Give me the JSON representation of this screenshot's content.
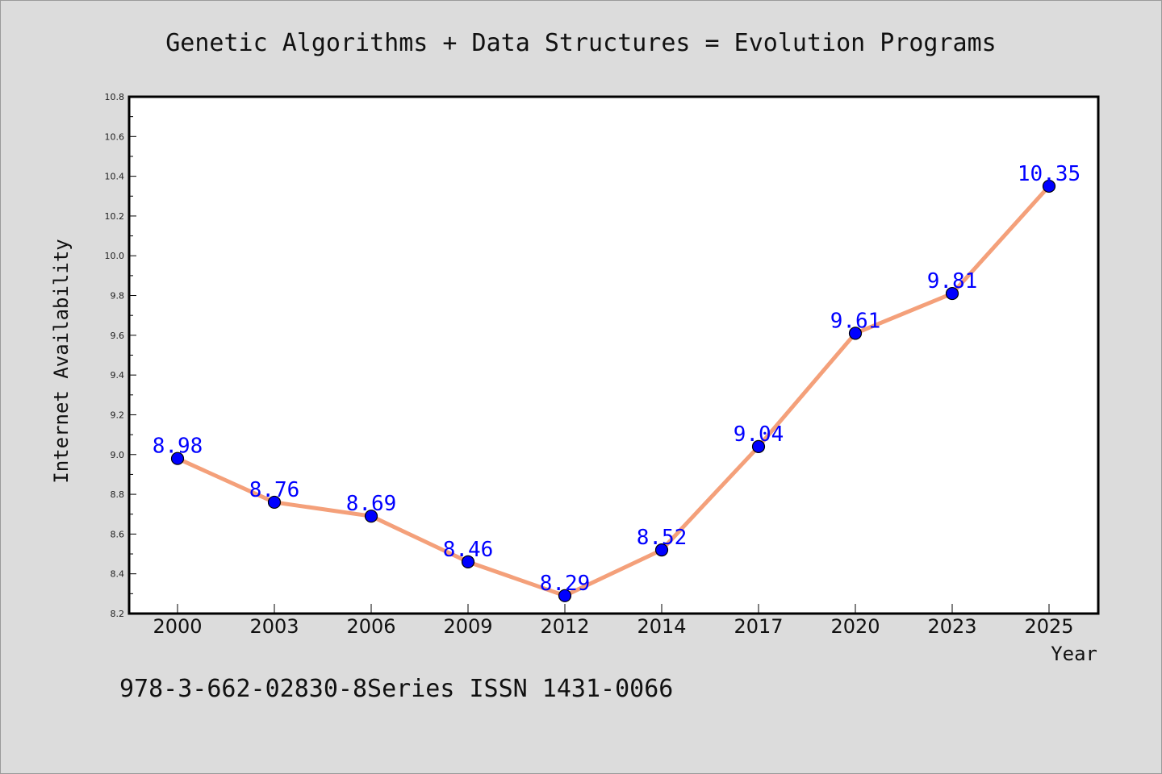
{
  "chart_data": {
    "type": "line",
    "title": "Genetic Algorithms + Data Structures = Evolution Programs",
    "xlabel": "Year",
    "ylabel": "Internet Availability",
    "categories": [
      "2000",
      "2003",
      "2006",
      "2009",
      "2012",
      "2014",
      "2017",
      "2020",
      "2023",
      "2025"
    ],
    "series": [
      {
        "values": [
          8.98,
          8.76,
          8.69,
          8.46,
          8.29,
          8.52,
          9.04,
          9.61,
          9.81,
          10.35
        ],
        "labels": [
          "8.98",
          "8.76",
          "8.69",
          "8.46",
          "8.29",
          "8.52",
          "9.04",
          "9.61",
          "9.81",
          "10.35"
        ],
        "line_color": "#f4a07a",
        "marker_color": "#0000ff",
        "label_color": "#0000ff"
      }
    ],
    "ylim": [
      8.2,
      10.8
    ],
    "yticks": [
      "8.2",
      "8.4",
      "8.6",
      "8.8",
      "9.0",
      "9.2",
      "9.4",
      "9.6",
      "9.8",
      "10.0",
      "10.2",
      "10.4",
      "10.6",
      "10.8"
    ],
    "grid": false,
    "legend": "none"
  },
  "footer": {
    "text": "978-3-662-02830-8Series ISSN 1431-0066"
  },
  "colors": {
    "background": "#dcdcdc",
    "plot_background": "#ffffff",
    "axis": "#000000"
  }
}
